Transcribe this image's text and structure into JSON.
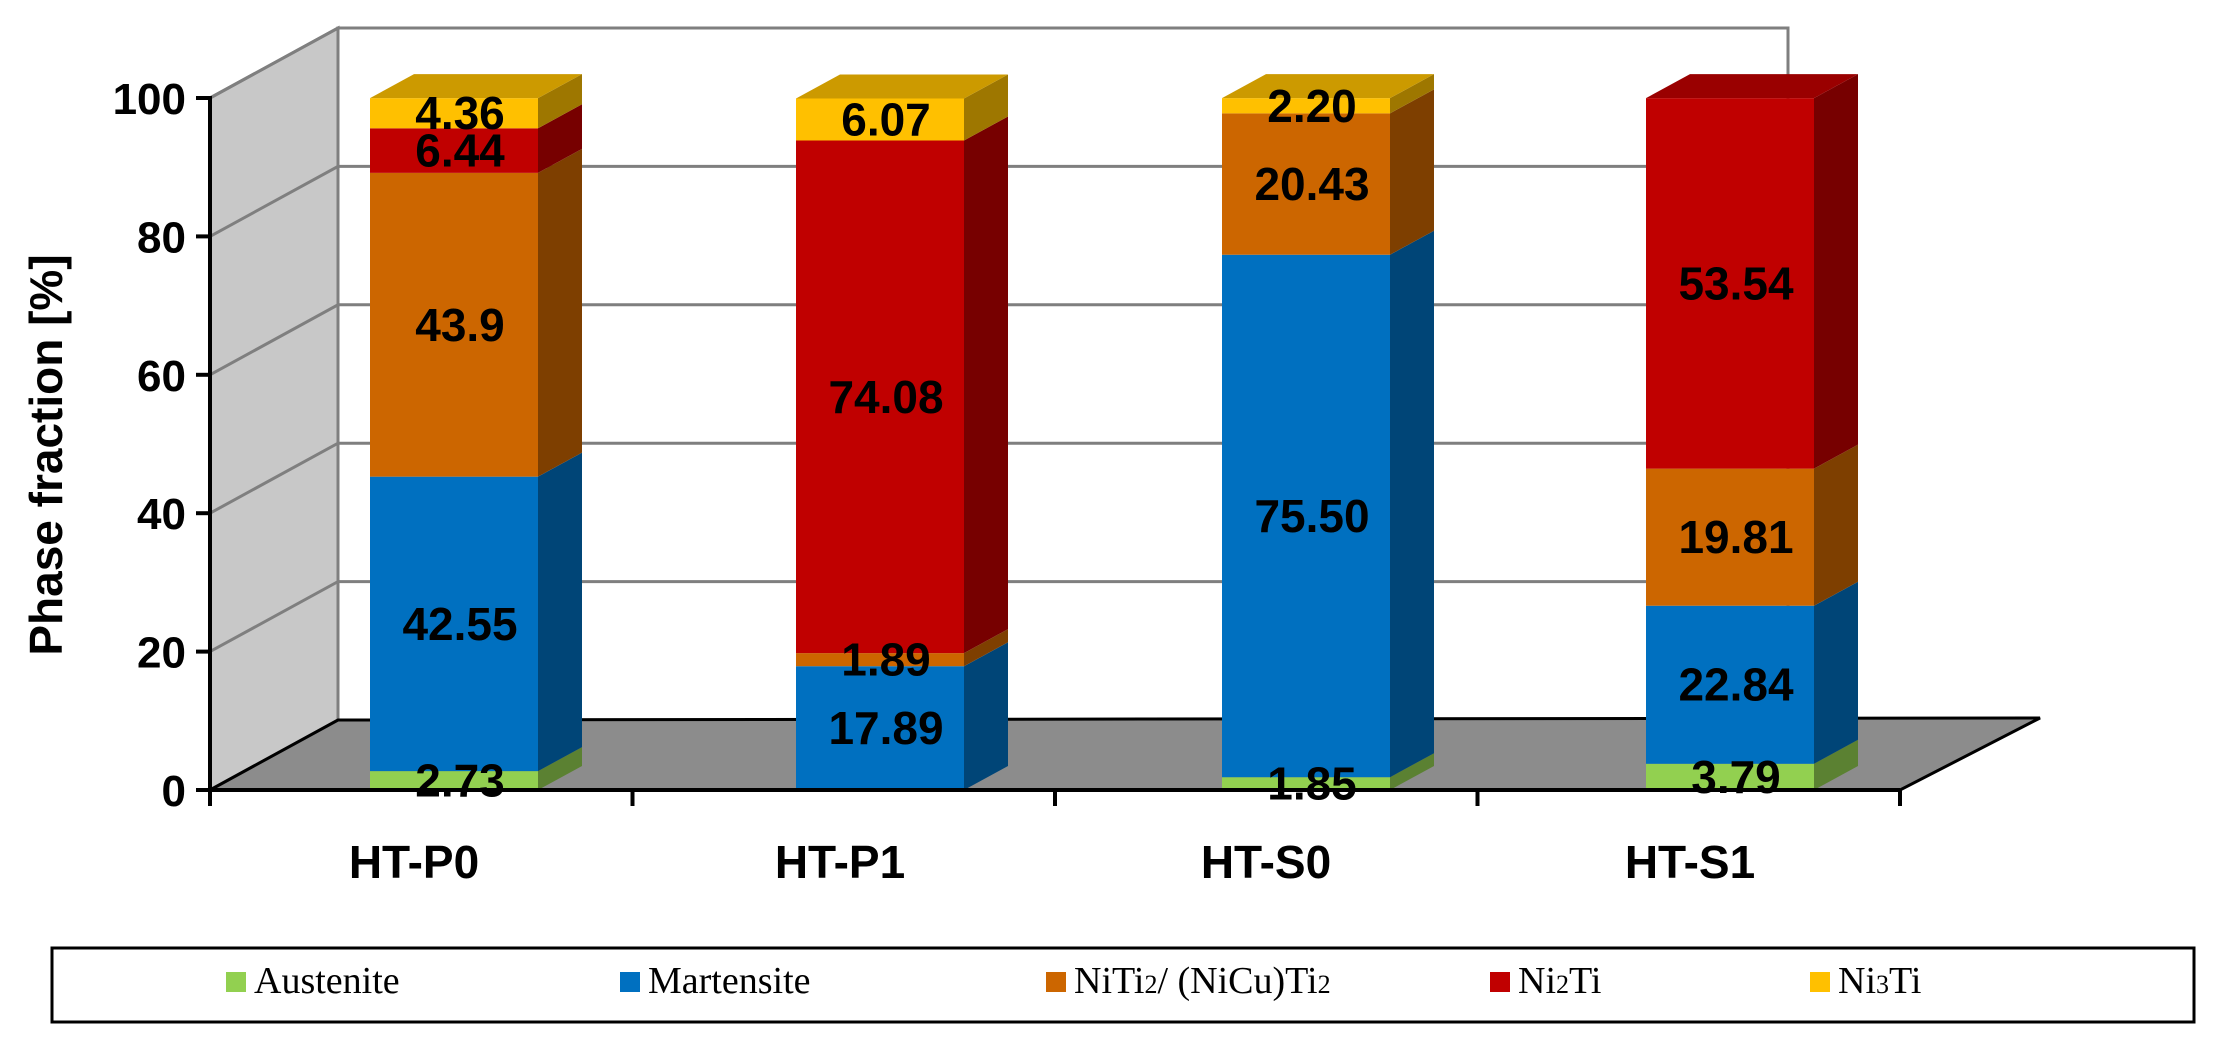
{
  "chart_data": {
    "type": "bar",
    "stacked": true,
    "three_d": true,
    "categories": [
      "HT-P0",
      "HT-P1",
      "HT-S0",
      "HT-S1"
    ],
    "ylabel": "Phase fraction [%]",
    "ylim": [
      0,
      100
    ],
    "yticks": [
      "0",
      "20",
      "40",
      "60",
      "80",
      "100"
    ],
    "grid": true,
    "legend_position": "bottom",
    "series": [
      {
        "name": "Austenite",
        "legend_main": "Austenite",
        "legend_sub": "",
        "legend_tail": "",
        "color": "#92D050",
        "values": [
          2.73,
          0,
          1.85,
          3.79
        ],
        "labels": [
          "2.73",
          "",
          "1.85",
          "3.79"
        ]
      },
      {
        "name": "Martensite",
        "legend_main": "Martensite",
        "legend_sub": "",
        "legend_tail": "",
        "color": "#0070C0",
        "values": [
          42.55,
          17.89,
          75.5,
          22.84
        ],
        "labels": [
          "42.55",
          "17.89",
          "75.50",
          "22.84"
        ]
      },
      {
        "name": "NiTi2/ (NiCu)Ti2",
        "legend_main": "NiTi",
        "legend_sub": "2",
        "legend_tail": "/ (NiCu)Ti",
        "legend_sub2": "2",
        "color": "#CC6600",
        "values": [
          43.9,
          1.89,
          20.43,
          19.81
        ],
        "labels": [
          "43.9",
          "1.89",
          "20.43",
          "19.81"
        ]
      },
      {
        "name": "Ni2Ti",
        "legend_main": "Ni",
        "legend_sub": "2",
        "legend_tail": "Ti",
        "color": "#C00000",
        "values": [
          6.44,
          74.08,
          0,
          53.54
        ],
        "labels": [
          "6.44",
          "74.08",
          "",
          "53.54"
        ]
      },
      {
        "name": "Ni3Ti",
        "legend_main": "Ni",
        "legend_sub": "3",
        "legend_tail": "Ti",
        "color": "#FFC000",
        "values": [
          4.36,
          6.07,
          2.2,
          0
        ],
        "labels": [
          "4.36",
          "6.07",
          "2.20",
          ""
        ]
      }
    ]
  }
}
